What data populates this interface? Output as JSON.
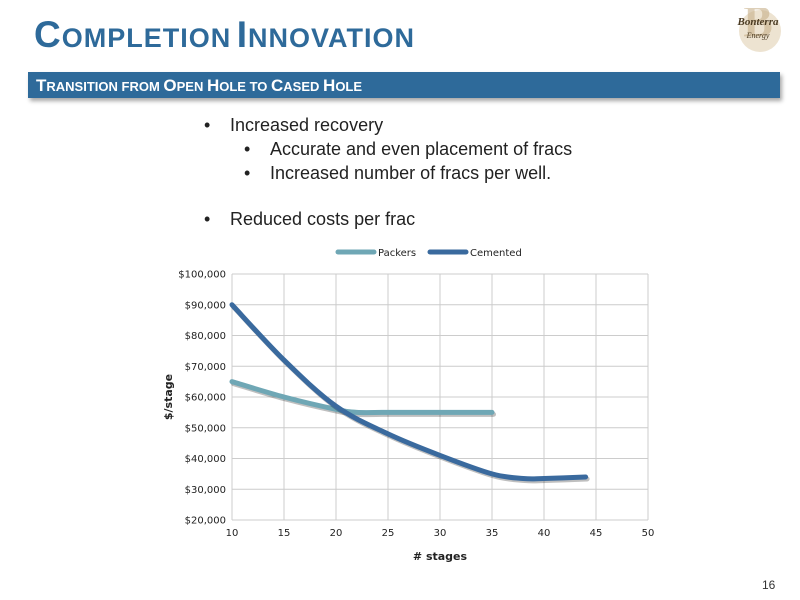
{
  "slide": {
    "title_first_letter_1": "C",
    "title_rest_1": "OMPLETION",
    "title_first_letter_2": "I",
    "title_rest_2": "NNOVATION",
    "logo_text_1": "Bonterra",
    "logo_text_2": "Energy",
    "subtitle_parts": [
      "T",
      "RANSITION FROM ",
      "O",
      "PEN ",
      "H",
      "OLE TO ",
      "C",
      "ASED ",
      "H",
      "OLE"
    ],
    "bullets": [
      "Increased recovery",
      "Accurate and even placement of fracs",
      "Increased number of fracs per well.",
      "Reduced costs per frac"
    ],
    "page_number": "16"
  },
  "colors": {
    "title": "#2e6a9a",
    "banner": "#2e6a9a",
    "packers": "#6fa7b5",
    "cemented": "#3a6a9e",
    "grid": "#cccccc"
  },
  "chart_data": {
    "type": "line",
    "title": "",
    "xlabel": "# stages",
    "ylabel": "$/stage",
    "xlim": [
      10,
      50
    ],
    "ylim": [
      20000,
      100000
    ],
    "x_ticks": [
      "10",
      "15",
      "20",
      "25",
      "30",
      "35",
      "40",
      "45",
      "50"
    ],
    "y_ticks": [
      "$20,000",
      "$30,000",
      "$40,000",
      "$50,000",
      "$60,000",
      "$70,000",
      "$80,000",
      "$90,000",
      "$100,000"
    ],
    "x_tick_values": [
      10,
      15,
      20,
      25,
      30,
      35,
      40,
      45,
      50
    ],
    "y_tick_values": [
      20000,
      30000,
      40000,
      50000,
      60000,
      70000,
      80000,
      90000,
      100000
    ],
    "grid": true,
    "legend_position": "top",
    "series": [
      {
        "name": "Packers",
        "x": [
          10,
          15,
          20,
          22,
          25,
          30,
          35
        ],
        "y": [
          65000,
          60000,
          56000,
          55000,
          55000,
          55000,
          55000
        ]
      },
      {
        "name": "Cemented",
        "x": [
          10,
          15,
          20,
          25,
          30,
          35,
          38,
          40,
          44
        ],
        "y": [
          90000,
          72000,
          57000,
          48000,
          41000,
          35000,
          33500,
          33500,
          34000
        ]
      }
    ]
  }
}
